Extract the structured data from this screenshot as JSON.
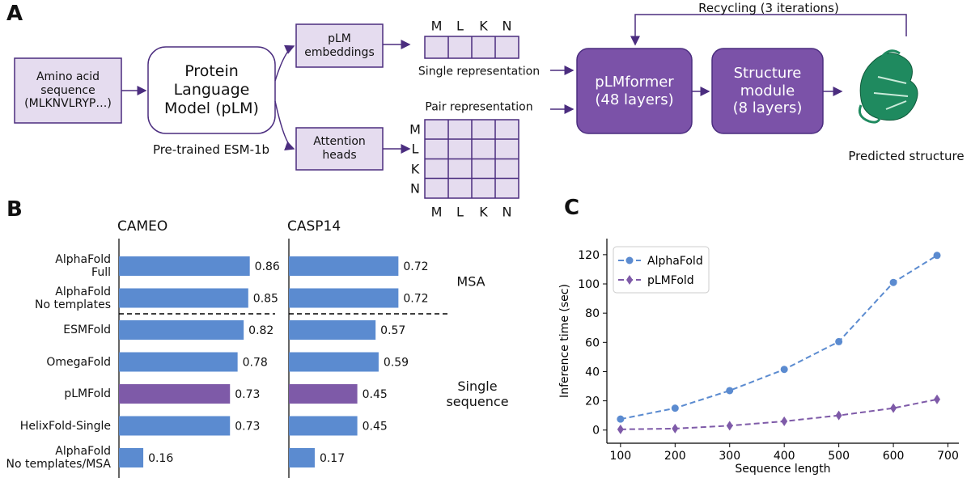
{
  "panel_labels": [
    "A",
    "B",
    "C"
  ],
  "diagram": {
    "input": "Amino acid\nsequence\n(MLKNVLRYP…)",
    "plm": "Protein\nLanguage\nModel (pLM)",
    "plm_caption": "Pre-trained ESM-1b",
    "embeddings": "pLM\nembeddings",
    "attention": "Attention\nheads",
    "residues": [
      "M",
      "L",
      "K",
      "N"
    ],
    "single_label": "Single representation",
    "pair_label": "Pair representation",
    "pLMformer": "pLMformer\n(48 layers)",
    "structure_module": "Structure\nmodule\n(8 layers)",
    "recycling": "Recycling (3 iterations)",
    "output": "Predicted structure"
  },
  "chart_data": [
    {
      "type": "bar-panels",
      "categories": [
        "AlphaFold\nFull",
        "AlphaFold\nNo templates",
        "ESMFold",
        "OmegaFold",
        "pLMFold",
        "HelixFold-Single",
        "AlphaFold\nNo templates/MSA"
      ],
      "series": [
        {
          "name": "CAMEO",
          "values": [
            0.86,
            0.85,
            0.82,
            0.78,
            0.73,
            0.73,
            0.16
          ],
          "colors": [
            "#5b8bd0",
            "#5b8bd0",
            "#5b8bd0",
            "#5b8bd0",
            "#7e5aa8",
            "#5b8bd0",
            "#5b8bd0"
          ]
        },
        {
          "name": "CASP14",
          "values": [
            0.72,
            0.72,
            0.57,
            0.59,
            0.45,
            0.45,
            0.17
          ],
          "colors": [
            "#5b8bd0",
            "#5b8bd0",
            "#5b8bd0",
            "#5b8bd0",
            "#7e5aa8",
            "#5b8bd0",
            "#5b8bd0"
          ]
        }
      ],
      "xlim": [
        0,
        1
      ],
      "annotations": [
        "MSA",
        "Single\nsequence"
      ]
    },
    {
      "type": "line",
      "xlabel": "Sequence length",
      "ylabel": "Inference time (sec)",
      "x": [
        100,
        200,
        300,
        400,
        500,
        600,
        680
      ],
      "series": [
        {
          "name": "AlphaFold",
          "color": "#5b8bd0",
          "marker": "circle",
          "values": [
            7.5,
            15,
            27,
            41.5,
            60.5,
            101,
            119.5
          ]
        },
        {
          "name": "pLMFold",
          "color": "#7e5aa8",
          "marker": "diamond",
          "values": [
            0.5,
            1,
            3,
            6,
            10,
            15,
            21
          ]
        }
      ],
      "xlim": [
        75,
        720
      ],
      "ylim": [
        -9,
        131
      ],
      "xticks": [
        100,
        200,
        300,
        400,
        500,
        600,
        700
      ],
      "yticks": [
        0,
        20,
        40,
        60,
        80,
        100,
        120
      ],
      "legend": "upper left",
      "linestyle": "dashed",
      "grid": false
    }
  ]
}
